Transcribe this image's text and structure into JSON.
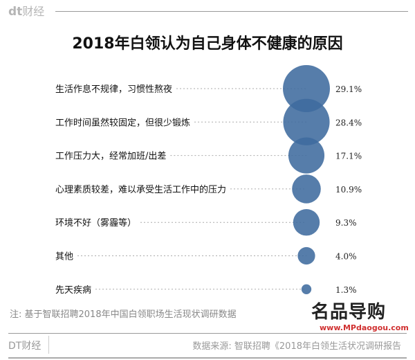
{
  "header": {
    "logo": "dt",
    "logo_suffix": "财经"
  },
  "chart_data": {
    "type": "bubble",
    "title": "2018年白领认为自己身体不健康的原因",
    "categories": [
      "生活作息不规律，习惯性熬夜",
      "工作时间虽然较固定，但很少锻炼",
      "工作压力大，经常加班/出差",
      "心理素质较差，难以承受生活工作中的压力",
      "环境不好（雾霾等）",
      "其他",
      "先天疾病"
    ],
    "values": [
      29.1,
      28.4,
      17.1,
      10.9,
      9.3,
      4.0,
      1.3
    ],
    "value_labels": [
      "29.1%",
      "28.4%",
      "17.1%",
      "10.9%",
      "9.3%",
      "4.0%",
      "1.3%"
    ],
    "unit": "%",
    "color": "#3f6b9e"
  },
  "footer": {
    "note": "注: 基于智联招聘2018年中国白领职场生活现状调研数据",
    "brand": "DT财经",
    "source": "数据来源: 智联招聘《2018年白领生活状况调研报告"
  },
  "watermark": {
    "text": "名品导购",
    "url": "www.MPdaogou.com"
  }
}
